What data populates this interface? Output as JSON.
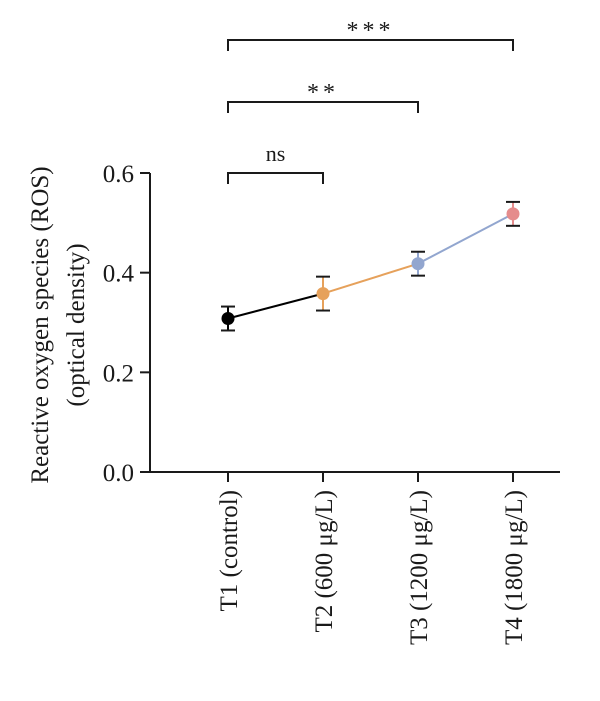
{
  "chart_data": {
    "type": "line",
    "ylabel_line1": "Reactive oxygen species (ROS)",
    "ylabel_line2": "(optical density)",
    "xlabel": "",
    "ylim": [
      0.0,
      0.6
    ],
    "yticks": [
      "0.0",
      "0.2",
      "0.4",
      "0.6"
    ],
    "grid": false,
    "categories": [
      "T1 (control)",
      "T2 (600 μg/L)",
      "T3 (1200 μg/L)",
      "T4 (1800 μg/L)"
    ],
    "values": [
      0.308,
      0.358,
      0.418,
      0.518
    ],
    "errors": [
      0.024,
      0.034,
      0.024,
      0.024
    ],
    "point_colors": [
      "#000000",
      "#E6A15B",
      "#92A6CF",
      "#E58C8C"
    ],
    "segment_colors": [
      "#000000",
      "#E6A15B",
      "#92A6CF"
    ],
    "significance": [
      {
        "from": 0,
        "to": 1,
        "label": "ns"
      },
      {
        "from": 0,
        "to": 2,
        "label": "**"
      },
      {
        "from": 0,
        "to": 3,
        "label": "***"
      }
    ]
  }
}
